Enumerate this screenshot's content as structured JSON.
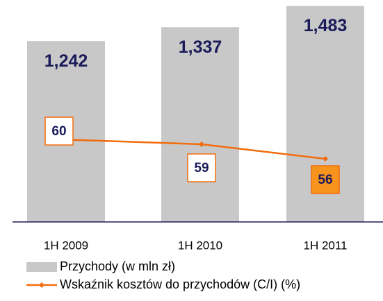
{
  "chart_data": {
    "type": "bar_line",
    "categories": [
      "1H 2009",
      "1H 2010",
      "1H 2011"
    ],
    "series": [
      {
        "name": "Przychody (w mln zł)",
        "type": "bar",
        "color": "#c8c8c8",
        "values": [
          1242,
          1337,
          1483
        ],
        "value_labels": [
          "1,242",
          "1,337",
          "1,483"
        ]
      },
      {
        "name": "Wskaźnik kosztów do przychodów (C/I) (%)",
        "type": "line",
        "axis": "y2",
        "color": "#f26c0d",
        "values": [
          60,
          59,
          56
        ]
      }
    ],
    "ylim": [
      0,
      1500
    ],
    "y2lim": [
      43,
      88
    ]
  }
}
